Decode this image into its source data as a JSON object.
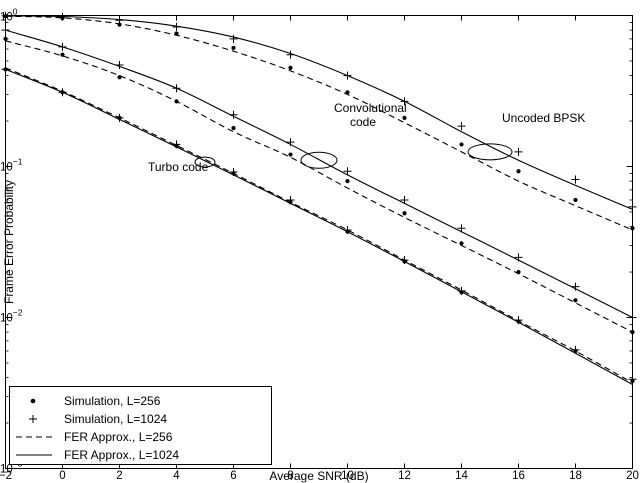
{
  "chart_data": {
    "type": "line",
    "xlabel": "Average SNR (dB)",
    "ylabel": "Frame Error Probability",
    "xlim": [
      -2,
      20
    ],
    "ylim": [
      0.001,
      1
    ],
    "yscale": "log",
    "grid": false,
    "legend_position": "bottom-left",
    "x_ticks": [
      -2,
      0,
      2,
      4,
      6,
      8,
      10,
      12,
      14,
      16,
      18,
      20
    ],
    "x_tick_labels": [
      "−2",
      "0",
      "2",
      "4",
      "6",
      "8",
      "10",
      "12",
      "14",
      "16",
      "18",
      "20"
    ],
    "y_ticks": [
      1,
      0.1,
      0.01,
      0.001
    ],
    "y_tick_labels": [
      {
        "base": "10",
        "exp": "0"
      },
      {
        "base": "10",
        "exp": "−1"
      },
      {
        "base": "10",
        "exp": "−2"
      },
      {
        "base": "10",
        "exp": "−3"
      }
    ],
    "legend": [
      {
        "label": "Simulation, L=256",
        "style": "dot"
      },
      {
        "label": "Simulation, L=1024",
        "style": "plus"
      },
      {
        "label": "FER Approx., L=256",
        "style": "dashed"
      },
      {
        "label": "FER Approx., L=1024",
        "style": "solid"
      }
    ],
    "annotations": [
      {
        "lines": [
          "Uncoded BPSK"
        ],
        "x": 15.0,
        "y": 0.125
      },
      {
        "lines": [
          "Convolutional",
          "code"
        ],
        "x": 9.0,
        "y": 0.11
      },
      {
        "lines": [
          "Turbo code"
        ],
        "x": 5.0,
        "y": 0.107
      }
    ],
    "groups": [
      {
        "name": "Uncoded BPSK",
        "x": [
          -2,
          0,
          2,
          4,
          6,
          8,
          10,
          12,
          14,
          16,
          18,
          20
        ],
        "approx_L1024": [
          0.995,
          0.985,
          0.94,
          0.85,
          0.72,
          0.56,
          0.4,
          0.27,
          0.17,
          0.11,
          0.075,
          0.052
        ],
        "approx_L256": [
          0.99,
          0.965,
          0.88,
          0.74,
          0.58,
          0.43,
          0.3,
          0.195,
          0.125,
          0.08,
          0.055,
          0.038
        ],
        "sim_L1024": [
          0.995,
          0.98,
          0.93,
          0.84,
          0.7,
          0.55,
          0.4,
          0.27,
          0.185,
          0.125,
          0.082,
          0.054
        ],
        "sim_L256": [
          0.99,
          0.96,
          0.87,
          0.76,
          0.61,
          0.45,
          0.31,
          0.21,
          0.14,
          0.093,
          0.06,
          0.039
        ]
      },
      {
        "name": "Convolutional code",
        "x": [
          -2,
          0,
          2,
          4,
          6,
          8,
          10,
          12,
          14,
          16,
          18,
          20
        ],
        "approx_L1024": [
          0.8,
          0.62,
          0.46,
          0.33,
          0.215,
          0.14,
          0.088,
          0.057,
          0.037,
          0.024,
          0.0155,
          0.01
        ],
        "approx_L256": [
          0.68,
          0.54,
          0.4,
          0.27,
          0.17,
          0.115,
          0.072,
          0.046,
          0.03,
          0.0195,
          0.0125,
          0.008
        ],
        "sim_L1024": [
          0.8,
          0.62,
          0.47,
          0.33,
          0.22,
          0.145,
          0.093,
          0.06,
          0.039,
          0.025,
          0.016,
          0.01
        ],
        "sim_L256": [
          0.7,
          0.55,
          0.39,
          0.27,
          0.18,
          0.12,
          0.08,
          0.049,
          0.031,
          0.02,
          0.013,
          0.008
        ]
      },
      {
        "name": "Turbo code",
        "x": [
          -2,
          0,
          2,
          4,
          6,
          8,
          10,
          12,
          14,
          16,
          18,
          20
        ],
        "approx_L1024": [
          0.44,
          0.31,
          0.205,
          0.135,
          0.088,
          0.057,
          0.037,
          0.0235,
          0.0148,
          0.0093,
          0.0058,
          0.0036
        ],
        "approx_L256": [
          0.45,
          0.315,
          0.21,
          0.138,
          0.09,
          0.058,
          0.038,
          0.024,
          0.0152,
          0.0095,
          0.006,
          0.0037
        ],
        "sim_L1024": [
          0.44,
          0.31,
          0.21,
          0.14,
          0.092,
          0.06,
          0.038,
          0.024,
          0.015,
          0.0096,
          0.0061,
          0.0039
        ],
        "sim_L256": [
          0.44,
          0.31,
          0.21,
          0.137,
          0.09,
          0.058,
          0.037,
          0.0235,
          0.0147,
          0.0094,
          0.006,
          0.0038
        ]
      }
    ]
  }
}
